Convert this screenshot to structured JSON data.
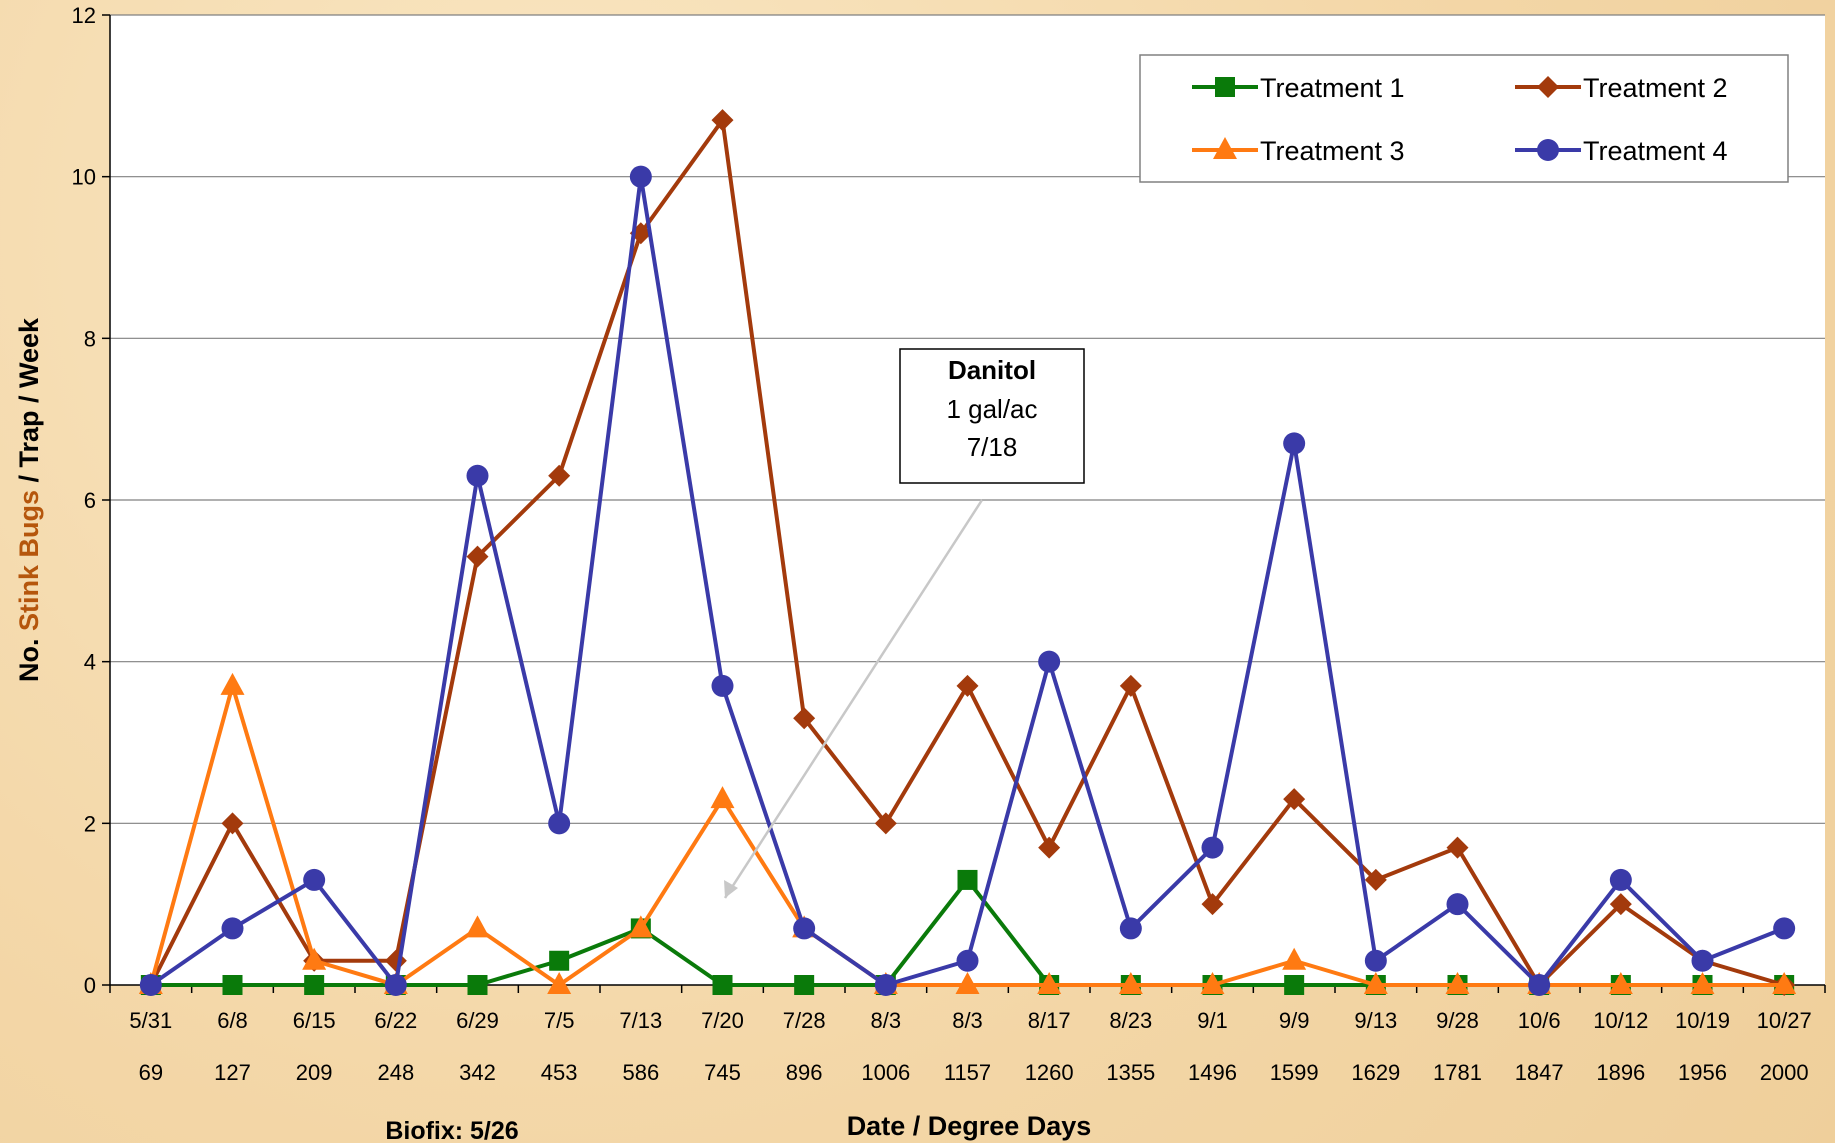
{
  "chart_data": {
    "type": "line",
    "ylabel_parts": [
      "No. ",
      "Stink Bugs",
      " / Trap / Week"
    ],
    "xlabel": "Date / Degree Days",
    "footnote": "Biofix: 5/26",
    "ylim": [
      0,
      12
    ],
    "yticks": [
      0,
      2,
      4,
      6,
      8,
      10,
      12
    ],
    "grid": true,
    "legend_position": "top-right",
    "categories": [
      "5/31",
      "6/8",
      "6/15",
      "6/22",
      "6/29",
      "7/5",
      "7/13",
      "7/20",
      "7/28",
      "8/3",
      "8/3",
      "8/17",
      "8/23",
      "9/1",
      "9/9",
      "9/13",
      "9/28",
      "10/6",
      "10/12",
      "10/19",
      "10/27"
    ],
    "degree_days": [
      "69",
      "127",
      "209",
      "248",
      "342",
      "453",
      "586",
      "745",
      "896",
      "1006",
      "1157",
      "1260",
      "1355",
      "1496",
      "1599",
      "1629",
      "1781",
      "1847",
      "1896",
      "1956",
      "2000"
    ],
    "series": [
      {
        "name": "Treatment 1",
        "color": "#0a7a0a",
        "marker": "square",
        "values": [
          0,
          0,
          0,
          0,
          0,
          0.3,
          0.7,
          0,
          0,
          0,
          1.3,
          0,
          0,
          0,
          0,
          0,
          0,
          0,
          0,
          0,
          0
        ]
      },
      {
        "name": "Treatment 2",
        "color": "#a33a0c",
        "marker": "diamond",
        "values": [
          0,
          2,
          0.3,
          0.3,
          5.3,
          6.3,
          9.3,
          10.7,
          3.3,
          2,
          3.7,
          1.7,
          3.7,
          1,
          2.3,
          1.3,
          1.7,
          0,
          1,
          0.3,
          0
        ]
      },
      {
        "name": "Treatment 3",
        "color": "#ff7a12",
        "marker": "triangle",
        "values": [
          0,
          3.7,
          0.3,
          0,
          0.7,
          0,
          0.7,
          2.3,
          0.7,
          0,
          0,
          0,
          0,
          0,
          0.3,
          0,
          0,
          0,
          0,
          0,
          0
        ]
      },
      {
        "name": "Treatment 4",
        "color": "#3a3aa8",
        "marker": "circle",
        "values": [
          0,
          0.7,
          1.3,
          0,
          6.3,
          2,
          10,
          3.7,
          0.7,
          0,
          0.3,
          4,
          0.7,
          1.7,
          6.7,
          0.3,
          1,
          0,
          1.3,
          0.3,
          0.7
        ]
      }
    ],
    "annotation": {
      "title": "Danitol",
      "line1": "1 gal/ac",
      "line2": "7/18"
    }
  },
  "colors": {
    "stink_bugs_label": "#b5560c",
    "grid": "#808080",
    "plot_bg": "#ffffff"
  }
}
